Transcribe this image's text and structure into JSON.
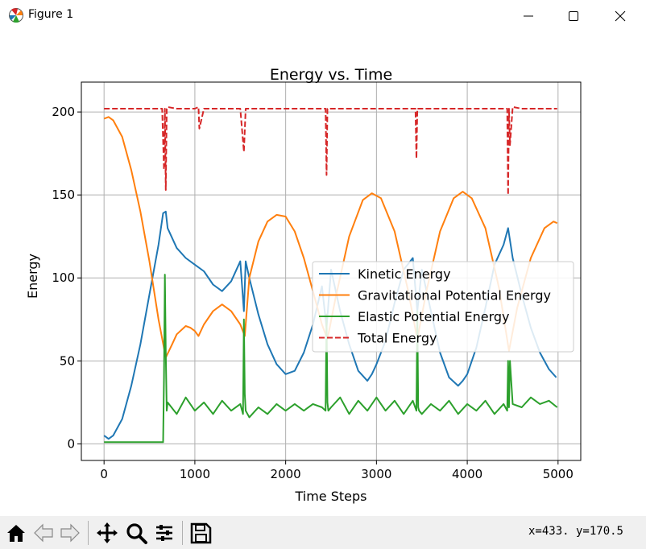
{
  "window": {
    "title": "Figure 1",
    "icon": "matplotlib-figure-icon",
    "controls": [
      "minimize-icon",
      "maximize-icon",
      "close-icon"
    ]
  },
  "toolbar": {
    "buttons": [
      "home-icon",
      "back-arrow-icon",
      "forward-arrow-icon",
      "pan-icon",
      "zoom-icon",
      "configure-subplots-icon",
      "save-icon"
    ],
    "coords_text": "x=433.  y=170.5"
  },
  "chart_data": {
    "type": "line",
    "title": "Energy vs. Time",
    "xlabel": "Time Steps",
    "ylabel": "Energy",
    "xlim": [
      -250,
      5250
    ],
    "ylim": [
      -10,
      218
    ],
    "xticks": [
      0,
      1000,
      2000,
      3000,
      4000,
      5000
    ],
    "yticks": [
      0,
      50,
      100,
      150,
      200
    ],
    "grid": true,
    "legend_position": "center-right",
    "series": [
      {
        "name": "Kinetic Energy",
        "color": "#1f77b4",
        "style": "solid",
        "x": [
          0,
          50,
          100,
          200,
          300,
          400,
          500,
          600,
          650,
          680,
          700,
          800,
          900,
          1000,
          1100,
          1200,
          1300,
          1400,
          1500,
          1540,
          1560,
          1600,
          1700,
          1800,
          1900,
          2000,
          2100,
          2200,
          2300,
          2400,
          2450,
          2500,
          2600,
          2700,
          2800,
          2900,
          2950,
          3000,
          3100,
          3200,
          3300,
          3400,
          3450,
          3500,
          3600,
          3700,
          3800,
          3900,
          3950,
          4000,
          4100,
          4200,
          4300,
          4400,
          4450,
          4500,
          4600,
          4700,
          4800,
          4900,
          4980
        ],
        "y": [
          5,
          3,
          5,
          15,
          35,
          60,
          90,
          120,
          139,
          140,
          130,
          118,
          112,
          108,
          104,
          96,
          92,
          98,
          110,
          80,
          110,
          100,
          78,
          60,
          48,
          42,
          44,
          55,
          72,
          95,
          70,
          105,
          80,
          60,
          44,
          38,
          42,
          48,
          62,
          85,
          105,
          112,
          80,
          105,
          80,
          55,
          40,
          35,
          38,
          42,
          58,
          82,
          108,
          120,
          130,
          112,
          90,
          70,
          55,
          45,
          40
        ]
      },
      {
        "name": "Gravitational Potential Energy",
        "color": "#ff7f0e",
        "style": "solid",
        "x": [
          0,
          50,
          100,
          200,
          300,
          400,
          500,
          600,
          680,
          750,
          800,
          900,
          950,
          1000,
          1040,
          1100,
          1200,
          1300,
          1400,
          1500,
          1550,
          1600,
          1700,
          1800,
          1900,
          2000,
          2100,
          2200,
          2300,
          2400,
          2460,
          2550,
          2700,
          2850,
          2950,
          3050,
          3200,
          3350,
          3450,
          3550,
          3700,
          3850,
          3950,
          4050,
          4200,
          4350,
          4460,
          4550,
          4700,
          4850,
          4950,
          4990
        ],
        "y": [
          196,
          197,
          195,
          185,
          165,
          140,
          110,
          75,
          52,
          60,
          66,
          71,
          70,
          68,
          65,
          72,
          80,
          84,
          80,
          72,
          65,
          100,
          122,
          134,
          138,
          137,
          128,
          112,
          92,
          72,
          63,
          88,
          125,
          147,
          151,
          148,
          128,
          92,
          63,
          92,
          128,
          148,
          152,
          148,
          130,
          94,
          56,
          82,
          112,
          130,
          134,
          133
        ]
      },
      {
        "name": "Elastic Potential Energy",
        "color": "#2ca02c",
        "style": "solid",
        "x": [
          0,
          650,
          660,
          670,
          680,
          690,
          700,
          800,
          900,
          1000,
          1100,
          1200,
          1300,
          1400,
          1500,
          1530,
          1540,
          1550,
          1560,
          1600,
          1700,
          1800,
          1900,
          2000,
          2100,
          2200,
          2300,
          2400,
          2440,
          2450,
          2460,
          2470,
          2500,
          2600,
          2700,
          2800,
          2900,
          3000,
          3100,
          3200,
          3300,
          3400,
          3440,
          3450,
          3460,
          3470,
          3500,
          3600,
          3700,
          3800,
          3900,
          4000,
          4100,
          4200,
          4300,
          4400,
          4440,
          4450,
          4460,
          4470,
          4500,
          4600,
          4700,
          4800,
          4900,
          4990
        ],
        "y": [
          1,
          1,
          40,
          102,
          55,
          20,
          25,
          18,
          28,
          20,
          25,
          18,
          26,
          20,
          24,
          18,
          75,
          30,
          20,
          16,
          22,
          18,
          24,
          20,
          24,
          20,
          24,
          22,
          20,
          78,
          25,
          20,
          22,
          28,
          18,
          26,
          20,
          28,
          20,
          26,
          18,
          26,
          20,
          80,
          22,
          20,
          18,
          24,
          20,
          26,
          18,
          24,
          20,
          26,
          18,
          24,
          20,
          50,
          22,
          50,
          24,
          22,
          28,
          24,
          26,
          22
        ]
      },
      {
        "name": "Total Energy",
        "color": "#d62728",
        "style": "dashed",
        "x": [
          0,
          300,
          640,
          660,
          670,
          680,
          690,
          700,
          800,
          1000,
          1040,
          1050,
          1100,
          1500,
          1540,
          1560,
          1600,
          2000,
          2400,
          2440,
          2450,
          2460,
          2500,
          3000,
          3400,
          3430,
          3440,
          3450,
          3500,
          4000,
          4400,
          4440,
          4450,
          4460,
          4470,
          4500,
          4600,
          4990
        ],
        "y": [
          202,
          202,
          202,
          165,
          202,
          153,
          202,
          203,
          202,
          202,
          203,
          190,
          202,
          202,
          176,
          202,
          202,
          202,
          202,
          202,
          162,
          202,
          202,
          202,
          202,
          202,
          172,
          202,
          202,
          202,
          202,
          202,
          150,
          202,
          180,
          203,
          202,
          202
        ]
      }
    ]
  }
}
